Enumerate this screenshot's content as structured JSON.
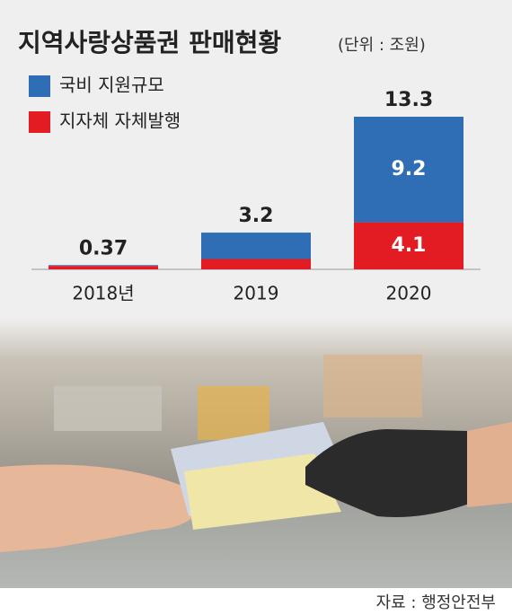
{
  "chart_data": {
    "type": "stacked-bar",
    "title": "지역사랑상품권 판매현황",
    "subtitle": "(단위 : 조원)",
    "source": "자료 : 행정안전부",
    "categories": [
      "2018년",
      "2019",
      "2020"
    ],
    "totals": [
      0.37,
      3.2,
      13.3
    ],
    "series": [
      {
        "name": "국비 지원규모",
        "color": "#2f6db5",
        "values": [
          0.07,
          2.3,
          9.2
        ],
        "value_labels": [
          null,
          null,
          "9.2"
        ]
      },
      {
        "name": "지자체 자체발행",
        "color": "#e31b23",
        "values": [
          0.3,
          0.9,
          4.1
        ],
        "value_labels": [
          null,
          null,
          "4.1"
        ]
      }
    ]
  }
}
